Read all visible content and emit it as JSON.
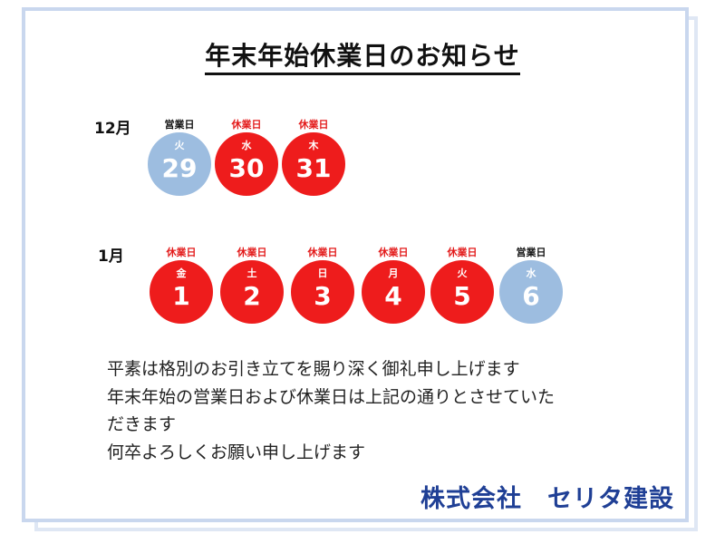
{
  "title": "年末年始休業日のお知らせ",
  "colors": {
    "holiday": "#ee1c1c",
    "open": "#9dbde0",
    "holiday_label": "#e31b1b",
    "open_label": "#111111",
    "company": "#1f3f95"
  },
  "december": {
    "label": "12月",
    "days": [
      {
        "status": "営業日",
        "weekday": "火",
        "day": "29",
        "type": "open"
      },
      {
        "status": "休業日",
        "weekday": "水",
        "day": "30",
        "type": "holiday"
      },
      {
        "status": "休業日",
        "weekday": "木",
        "day": "31",
        "type": "holiday"
      }
    ]
  },
  "january": {
    "label": "1月",
    "days": [
      {
        "status": "休業日",
        "weekday": "金",
        "day": "1",
        "type": "holiday"
      },
      {
        "status": "休業日",
        "weekday": "土",
        "day": "2",
        "type": "holiday"
      },
      {
        "status": "休業日",
        "weekday": "日",
        "day": "3",
        "type": "holiday"
      },
      {
        "status": "休業日",
        "weekday": "月",
        "day": "4",
        "type": "holiday"
      },
      {
        "status": "休業日",
        "weekday": "火",
        "day": "5",
        "type": "holiday"
      },
      {
        "status": "営業日",
        "weekday": "水",
        "day": "6",
        "type": "open"
      }
    ]
  },
  "message": [
    "平素は格別のお引き立てを賜り深く御礼申し上げます",
    "年末年始の営業日および休業日は上記の通りとさせていた",
    "だきます",
    "何卒よろしくお願い申し上げます"
  ],
  "company": "株式会社　セリタ建設"
}
